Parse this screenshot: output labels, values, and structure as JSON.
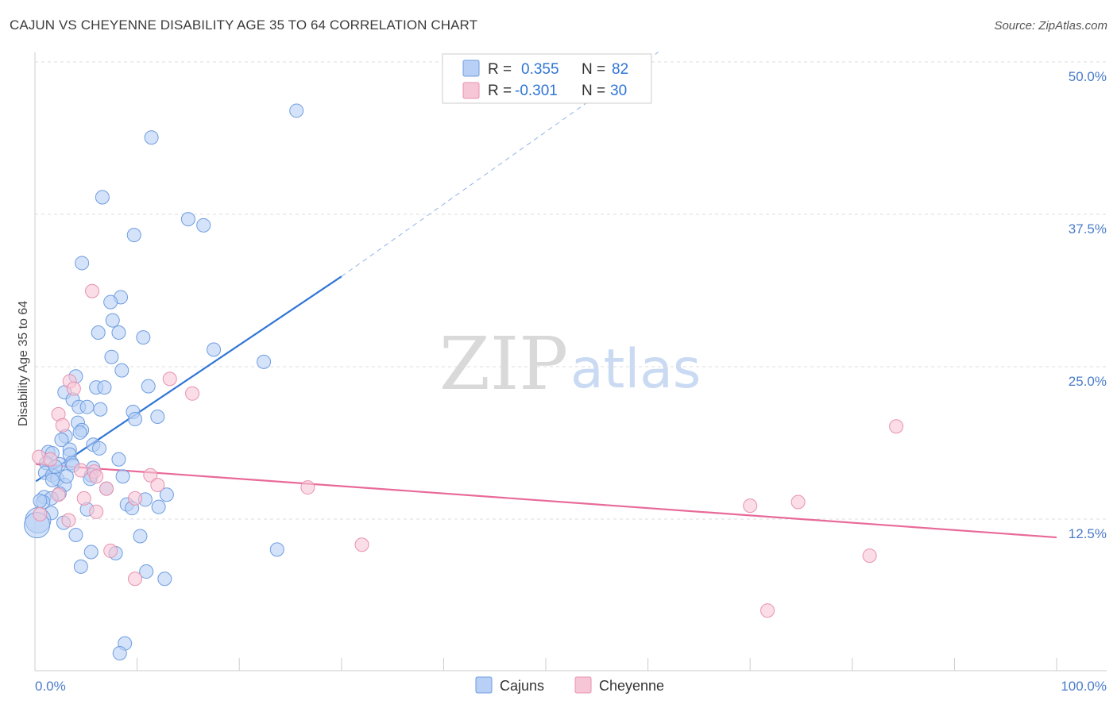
{
  "title": "CAJUN VS CHEYENNE DISABILITY AGE 35 TO 64 CORRELATION CHART",
  "source": "Source: ZipAtlas.com",
  "watermark": {
    "zip": "ZIP",
    "atlas": "atlas"
  },
  "legend_top": {
    "rows": [
      {
        "r_label": "R =",
        "r_value": "0.355",
        "n_label": "N =",
        "n_value": "82"
      },
      {
        "r_label": "R =",
        "r_value": "-0.301",
        "n_label": "N =",
        "n_value": "30"
      }
    ]
  },
  "legend_bottom": {
    "items": [
      "Cajuns",
      "Cheyenne"
    ]
  },
  "colors": {
    "cajuns_fill": "#b8d0f5",
    "cajuns_stroke": "#6f9de0",
    "cajuns_line": "#2f75d6",
    "cheyenne_fill": "#f7c6d6",
    "cheyenne_stroke": "#e892b0",
    "cheyenne_line": "#e86a98",
    "tick_text": "#4a7cc9"
  },
  "chart_data": {
    "type": "scatter",
    "title": "CAJUN VS CHEYENNE DISABILITY AGE 35 TO 64 CORRELATION CHART",
    "xlabel": "",
    "ylabel": "Disability Age 35 to 64",
    "xlim": [
      0,
      100
    ],
    "ylim": [
      0,
      52
    ],
    "x_ticks": [
      0,
      100
    ],
    "x_tick_labels": [
      "0.0%",
      "100.0%"
    ],
    "y_ticks": [
      12.5,
      25.0,
      37.5,
      50.0
    ],
    "y_tick_labels": [
      "12.5%",
      "25.0%",
      "37.5%",
      "50.0%"
    ],
    "grid": true,
    "series": [
      {
        "name": "Cajuns",
        "r": 0.355,
        "n": 82,
        "points": [
          [
            25.6,
            46.0
          ],
          [
            11.4,
            43.8
          ],
          [
            6.6,
            38.9
          ],
          [
            15.0,
            37.1
          ],
          [
            16.5,
            36.6
          ],
          [
            9.7,
            35.8
          ],
          [
            4.6,
            33.5
          ],
          [
            8.4,
            30.7
          ],
          [
            7.4,
            30.3
          ],
          [
            7.6,
            28.8
          ],
          [
            6.2,
            27.8
          ],
          [
            8.2,
            27.8
          ],
          [
            10.6,
            27.4
          ],
          [
            17.5,
            26.4
          ],
          [
            7.5,
            25.8
          ],
          [
            22.4,
            25.4
          ],
          [
            8.5,
            24.7
          ],
          [
            4.0,
            24.2
          ],
          [
            11.1,
            23.4
          ],
          [
            6.0,
            23.3
          ],
          [
            6.8,
            23.3
          ],
          [
            2.9,
            22.9
          ],
          [
            3.7,
            22.3
          ],
          [
            4.3,
            21.7
          ],
          [
            5.1,
            21.7
          ],
          [
            6.4,
            21.5
          ],
          [
            9.6,
            21.3
          ],
          [
            9.8,
            20.7
          ],
          [
            12.0,
            20.9
          ],
          [
            4.2,
            20.4
          ],
          [
            4.6,
            19.8
          ],
          [
            4.4,
            19.6
          ],
          [
            3.0,
            19.3
          ],
          [
            2.6,
            19.0
          ],
          [
            5.7,
            18.6
          ],
          [
            3.4,
            18.2
          ],
          [
            1.3,
            18.0
          ],
          [
            3.4,
            17.8
          ],
          [
            1.7,
            17.9
          ],
          [
            8.2,
            17.4
          ],
          [
            1.1,
            17.1
          ],
          [
            2.4,
            17.0
          ],
          [
            3.6,
            17.1
          ],
          [
            3.7,
            16.9
          ],
          [
            5.7,
            16.7
          ],
          [
            1.0,
            16.3
          ],
          [
            1.7,
            16.1
          ],
          [
            2.2,
            15.8
          ],
          [
            1.7,
            15.7
          ],
          [
            5.5,
            16.1
          ],
          [
            5.4,
            15.8
          ],
          [
            8.6,
            16.0
          ],
          [
            2.9,
            15.3
          ],
          [
            2.4,
            14.6
          ],
          [
            0.9,
            14.3
          ],
          [
            1.6,
            14.2
          ],
          [
            0.8,
            13.9
          ],
          [
            7.0,
            15.0
          ],
          [
            12.9,
            14.5
          ],
          [
            10.8,
            14.1
          ],
          [
            9.0,
            13.7
          ],
          [
            12.1,
            13.5
          ],
          [
            9.5,
            13.4
          ],
          [
            5.1,
            13.3
          ],
          [
            1.6,
            13.0
          ],
          [
            0.3,
            12.4
          ],
          [
            2.8,
            12.2
          ],
          [
            4.0,
            11.2
          ],
          [
            10.3,
            11.1
          ],
          [
            23.7,
            10.0
          ],
          [
            5.5,
            9.8
          ],
          [
            7.9,
            9.7
          ],
          [
            4.5,
            8.6
          ],
          [
            10.9,
            8.2
          ],
          [
            12.7,
            7.6
          ],
          [
            8.8,
            2.3
          ],
          [
            8.3,
            1.5
          ],
          [
            0.2,
            12.0
          ],
          [
            0.5,
            14.0
          ],
          [
            2.0,
            16.8
          ],
          [
            6.3,
            18.3
          ],
          [
            3.1,
            16.0
          ]
        ],
        "trend": {
          "x0": 0.1,
          "y0": 15.6,
          "x1": 30,
          "y1": 32.4,
          "dashed_to_x": 61,
          "dashed_to_y": 50.8
        }
      },
      {
        "name": "Cheyenne",
        "r": -0.301,
        "n": 30,
        "points": [
          [
            5.6,
            31.2
          ],
          [
            13.2,
            24.0
          ],
          [
            3.4,
            23.8
          ],
          [
            3.8,
            23.2
          ],
          [
            15.4,
            22.8
          ],
          [
            2.3,
            21.1
          ],
          [
            2.7,
            20.2
          ],
          [
            84.3,
            20.1
          ],
          [
            0.4,
            17.6
          ],
          [
            1.5,
            17.4
          ],
          [
            4.5,
            16.5
          ],
          [
            5.8,
            16.4
          ],
          [
            11.3,
            16.1
          ],
          [
            6.0,
            16.0
          ],
          [
            12.0,
            15.3
          ],
          [
            26.7,
            15.1
          ],
          [
            7.0,
            15.0
          ],
          [
            2.3,
            14.5
          ],
          [
            4.8,
            14.2
          ],
          [
            9.8,
            14.2
          ],
          [
            70.0,
            13.6
          ],
          [
            6.0,
            13.1
          ],
          [
            0.5,
            12.9
          ],
          [
            3.3,
            12.4
          ],
          [
            32.0,
            10.4
          ],
          [
            74.7,
            13.9
          ],
          [
            81.7,
            9.5
          ],
          [
            7.4,
            9.9
          ],
          [
            9.8,
            7.6
          ],
          [
            71.7,
            5.0
          ]
        ],
        "trend": {
          "x0": 0.1,
          "y0": 17.0,
          "x1": 100,
          "y1": 11.0
        }
      }
    ]
  }
}
